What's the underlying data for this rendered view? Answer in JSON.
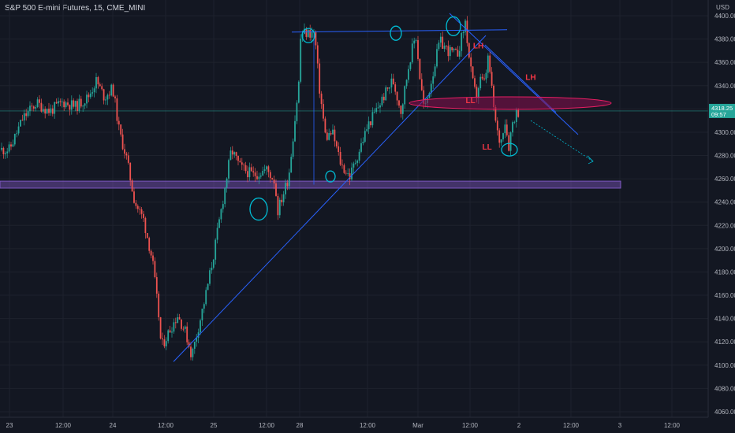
{
  "header": {
    "symbol": "S&P 500 E-mini Futures",
    "interval": "15",
    "exchange": "CME_MINI",
    "currency": "USD"
  },
  "price_badge": {
    "price": "4318.25",
    "countdown": "09:57",
    "color": "#26a69a"
  },
  "colors": {
    "background": "#131722",
    "up": "#26a69a",
    "down": "#ef5350",
    "trendline": "#2962ff",
    "ellipse_fill": "#880e4f",
    "ellipse_stroke": "#e91e63",
    "support_band": "#7e57c2",
    "circle_marks": "#00bcd4",
    "annotation_text": "#f23645"
  },
  "annotations": [
    {
      "text": "LH",
      "x": "Mar 1 12:45",
      "y": 4372
    },
    {
      "text": "LH",
      "x": "Mar 2 01:30",
      "y": 4345
    },
    {
      "text": "LL",
      "x": "Mar 1 11:00",
      "y": 4325
    },
    {
      "text": "LL",
      "x": "Mar 1 15:00",
      "y": 4285
    }
  ],
  "chart_data": {
    "type": "candlestick",
    "title": "",
    "xlabel": "",
    "ylabel": "",
    "x_ticks": [
      "23",
      "12:00",
      "24",
      "12:00",
      "25",
      "12:00",
      "28",
      "12:00",
      "Mar",
      "12:00",
      "2",
      "12:00",
      "3",
      "12:00"
    ],
    "y_ticks": [
      4060,
      4080,
      4100,
      4120,
      4140,
      4160,
      4180,
      4200,
      4220,
      4240,
      4260,
      4280,
      4300,
      4320,
      4340,
      4360,
      4380,
      4400
    ],
    "ylim": [
      4056,
      4412
    ],
    "last_price": 4318.25,
    "grid": true,
    "price_path": [
      [
        "Feb 23 00:00",
        4285
      ],
      [
        "Feb 23 03:00",
        4312
      ],
      [
        "Feb 23 06:00",
        4325
      ],
      [
        "Feb 23 09:00",
        4318
      ],
      [
        "Feb 23 12:00",
        4326
      ],
      [
        "Feb 23 15:00",
        4322
      ],
      [
        "Feb 23 18:00",
        4330
      ],
      [
        "Feb 23 20:00",
        4344
      ],
      [
        "Feb 23 22:00",
        4330
      ],
      [
        "Feb 24 00:00",
        4338
      ],
      [
        "Feb 24 01:30",
        4300
      ],
      [
        "Feb 24 03:00",
        4280
      ],
      [
        "Feb 24 05:00",
        4240
      ],
      [
        "Feb 24 07:00",
        4225
      ],
      [
        "Feb 24 09:00",
        4190
      ],
      [
        "Feb 24 10:30",
        4140
      ],
      [
        "Feb 24 11:00",
        4115
      ],
      [
        "Feb 24 13:00",
        4130
      ],
      [
        "Feb 24 15:00",
        4143
      ],
      [
        "Feb 24 17:00",
        4128
      ],
      [
        "Feb 24 18:30",
        4108
      ],
      [
        "Feb 24 20:00",
        4130
      ],
      [
        "Feb 24 22:00",
        4160
      ],
      [
        "Feb 25 00:00",
        4195
      ],
      [
        "Feb 25 02:00",
        4240
      ],
      [
        "Feb 25 04:00",
        4285
      ],
      [
        "Feb 25 06:00",
        4270
      ],
      [
        "Feb 25 09:00",
        4263
      ],
      [
        "Feb 25 12:00",
        4268
      ],
      [
        "Feb 25 15:00",
        4258
      ],
      [
        "Feb 25 16:00",
        4232
      ],
      [
        "Feb 25 17:30",
        4243
      ],
      [
        "Feb 25 20:00",
        4262
      ],
      [
        "Feb 25 22:00",
        4305
      ],
      [
        "Feb 26 00:00",
        4350
      ],
      [
        "Feb 26 02:00",
        4375
      ],
      [
        "Feb 26 04:00",
        4385
      ],
      [
        "Feb 28 00:00",
        4385
      ],
      [
        "Feb 28 01:00",
        4340
      ],
      [
        "Feb 28 02:30",
        4295
      ],
      [
        "Feb 28 04:00",
        4300
      ],
      [
        "Feb 28 06:00",
        4272
      ],
      [
        "Feb 28 08:00",
        4262
      ],
      [
        "Feb 28 10:00",
        4283
      ],
      [
        "Feb 28 12:00",
        4305
      ],
      [
        "Feb 28 15:00",
        4325
      ],
      [
        "Feb 28 18:00",
        4345
      ],
      [
        "Feb 28 20:00",
        4318
      ],
      [
        "Feb 28 22:00",
        4362
      ],
      [
        "Feb 28 23:30",
        4384
      ],
      [
        "Mar 1 00:30",
        4345
      ],
      [
        "Mar 1 01:30",
        4318
      ],
      [
        "Mar 1 03:00",
        4343
      ],
      [
        "Mar 1 05:00",
        4378
      ],
      [
        "Mar 1 07:00",
        4370
      ],
      [
        "Mar 1 09:00",
        4366
      ],
      [
        "Mar 1 10:00",
        4380
      ],
      [
        "Mar 1 11:00",
        4396
      ],
      [
        "Mar 1 11:30",
        4372
      ],
      [
        "Mar 1 12:30",
        4345
      ],
      [
        "Mar 1 13:30",
        4330
      ],
      [
        "Mar 1 14:30",
        4345
      ],
      [
        "Mar 1 15:30",
        4342
      ],
      [
        "Mar 1 16:30",
        4365
      ],
      [
        "Mar 1 17:30",
        4330
      ],
      [
        "Mar 1 18:30",
        4302
      ],
      [
        "Mar 1 19:30",
        4290
      ],
      [
        "Mar 1 20:30",
        4312
      ],
      [
        "Mar 1 21:30",
        4288
      ],
      [
        "Mar 1 22:30",
        4310
      ],
      [
        "Mar 1 23:15",
        4316
      ],
      [
        "Mar 2 00:00",
        4318.25
      ]
    ]
  }
}
